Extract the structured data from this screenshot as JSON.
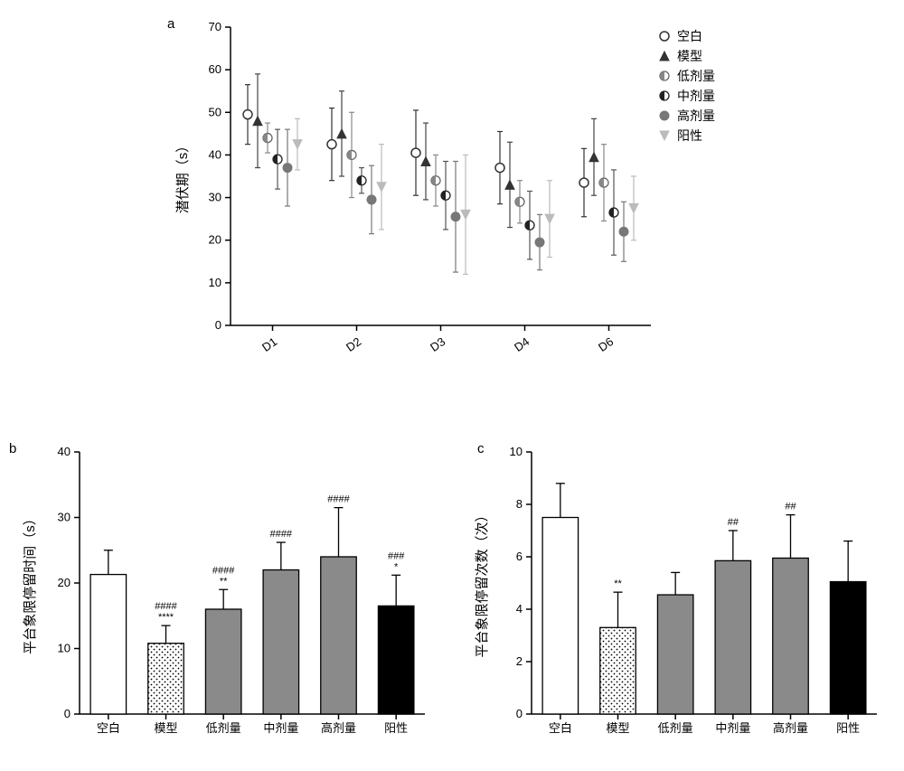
{
  "panel_a": {
    "label": "a",
    "type": "scatter-error",
    "x_categories": [
      "D1",
      "D2",
      "D3",
      "D4",
      "D6"
    ],
    "y_title": "潜伏期（s）",
    "ylim": [
      0,
      70
    ],
    "ytick_step": 10,
    "groups": [
      {
        "name": "空白",
        "marker": "circle-open",
        "fill": "#ffffff",
        "stroke": "#333333",
        "err_color": "#333333",
        "values": [
          49.5,
          42.5,
          40.5,
          37,
          33.5
        ],
        "err": [
          7,
          8.5,
          10,
          8.5,
          8
        ]
      },
      {
        "name": "模型",
        "marker": "triangle",
        "fill": "#333333",
        "stroke": "#333333",
        "err_color": "#444444",
        "values": [
          48,
          45,
          38.5,
          33,
          39.5
        ],
        "err": [
          11,
          10,
          9,
          10,
          9
        ]
      },
      {
        "name": "低剂量",
        "marker": "circle-half",
        "fill": "#888888",
        "stroke": "#666666",
        "err_color": "#888888",
        "values": [
          44,
          40,
          34,
          29,
          33.5
        ],
        "err": [
          3.5,
          10,
          6,
          5,
          9
        ]
      },
      {
        "name": "中剂量",
        "marker": "circle-half-dark",
        "fill": "#222222",
        "stroke": "#222222",
        "err_color": "#555555",
        "values": [
          39,
          34,
          30.5,
          23.5,
          26.5
        ],
        "err": [
          7,
          3,
          8,
          8,
          10
        ]
      },
      {
        "name": "高剂量",
        "marker": "circle",
        "fill": "#777777",
        "stroke": "#777777",
        "err_color": "#777777",
        "values": [
          37,
          29.5,
          25.5,
          19.5,
          22
        ],
        "err": [
          9,
          8,
          13,
          6.5,
          7
        ]
      },
      {
        "name": "阳性",
        "marker": "triangle-down",
        "fill": "#bbbbbb",
        "stroke": "#bbbbbb",
        "err_color": "#bbbbbb",
        "values": [
          42.5,
          32.5,
          26,
          25,
          27.5
        ],
        "err": [
          6,
          10,
          14,
          9,
          7.5
        ]
      }
    ],
    "legend_labels": [
      "空白",
      "模型",
      "低剂量",
      "中剂量",
      "高剂量",
      "阳性"
    ],
    "background_color": "#ffffff",
    "axis_color": "#000000"
  },
  "panel_b": {
    "label": "b",
    "type": "bar",
    "y_title": "平台象限停留时间（s）",
    "ylim": [
      0,
      40
    ],
    "ytick_step": 10,
    "categories": [
      "空白",
      "模型",
      "低剂量",
      "中剂量",
      "高剂量",
      "阳性"
    ],
    "bars": [
      {
        "name": "空白",
        "value": 21.3,
        "err": 3.7,
        "fill": "#ffffff",
        "pattern": "none",
        "sig_top": "",
        "sig_bot": ""
      },
      {
        "name": "模型",
        "value": 10.8,
        "err": 2.7,
        "fill": "#ffffff",
        "pattern": "dots",
        "sig_top": "####",
        "sig_bot": "****"
      },
      {
        "name": "低剂量",
        "value": 16.0,
        "err": 3.0,
        "fill": "#8a8a8a",
        "pattern": "none",
        "sig_top": "####",
        "sig_bot": "**"
      },
      {
        "name": "中剂量",
        "value": 22.0,
        "err": 4.2,
        "fill": "#8a8a8a",
        "pattern": "none",
        "sig_top": "####",
        "sig_bot": ""
      },
      {
        "name": "高剂量",
        "value": 24.0,
        "err": 7.5,
        "fill": "#8a8a8a",
        "pattern": "none",
        "sig_top": "####",
        "sig_bot": ""
      },
      {
        "name": "阳性",
        "value": 16.5,
        "err": 4.7,
        "fill": "#000000",
        "pattern": "none",
        "sig_top": "###",
        "sig_bot": "*"
      }
    ],
    "bar_width": 0.62,
    "background_color": "#ffffff"
  },
  "panel_c": {
    "label": "c",
    "type": "bar",
    "y_title": "平台象限停留次数（次）",
    "ylim": [
      0,
      10
    ],
    "ytick_step": 2,
    "categories": [
      "空白",
      "模型",
      "低剂量",
      "中剂量",
      "高剂量",
      "阳性"
    ],
    "bars": [
      {
        "name": "空白",
        "value": 7.5,
        "err": 1.3,
        "fill": "#ffffff",
        "pattern": "none",
        "sig_top": "",
        "sig_bot": ""
      },
      {
        "name": "模型",
        "value": 3.3,
        "err": 1.35,
        "fill": "#ffffff",
        "pattern": "dots",
        "sig_top": "",
        "sig_bot": "**"
      },
      {
        "name": "低剂量",
        "value": 4.55,
        "err": 0.85,
        "fill": "#8a8a8a",
        "pattern": "none",
        "sig_top": "",
        "sig_bot": ""
      },
      {
        "name": "中剂量",
        "value": 5.85,
        "err": 1.15,
        "fill": "#8a8a8a",
        "pattern": "none",
        "sig_top": "##",
        "sig_bot": ""
      },
      {
        "name": "高剂量",
        "value": 5.95,
        "err": 1.65,
        "fill": "#8a8a8a",
        "pattern": "none",
        "sig_top": "##",
        "sig_bot": ""
      },
      {
        "name": "阳性",
        "value": 5.05,
        "err": 1.55,
        "fill": "#000000",
        "pattern": "none",
        "sig_top": "",
        "sig_bot": ""
      }
    ],
    "bar_width": 0.62,
    "background_color": "#ffffff"
  }
}
